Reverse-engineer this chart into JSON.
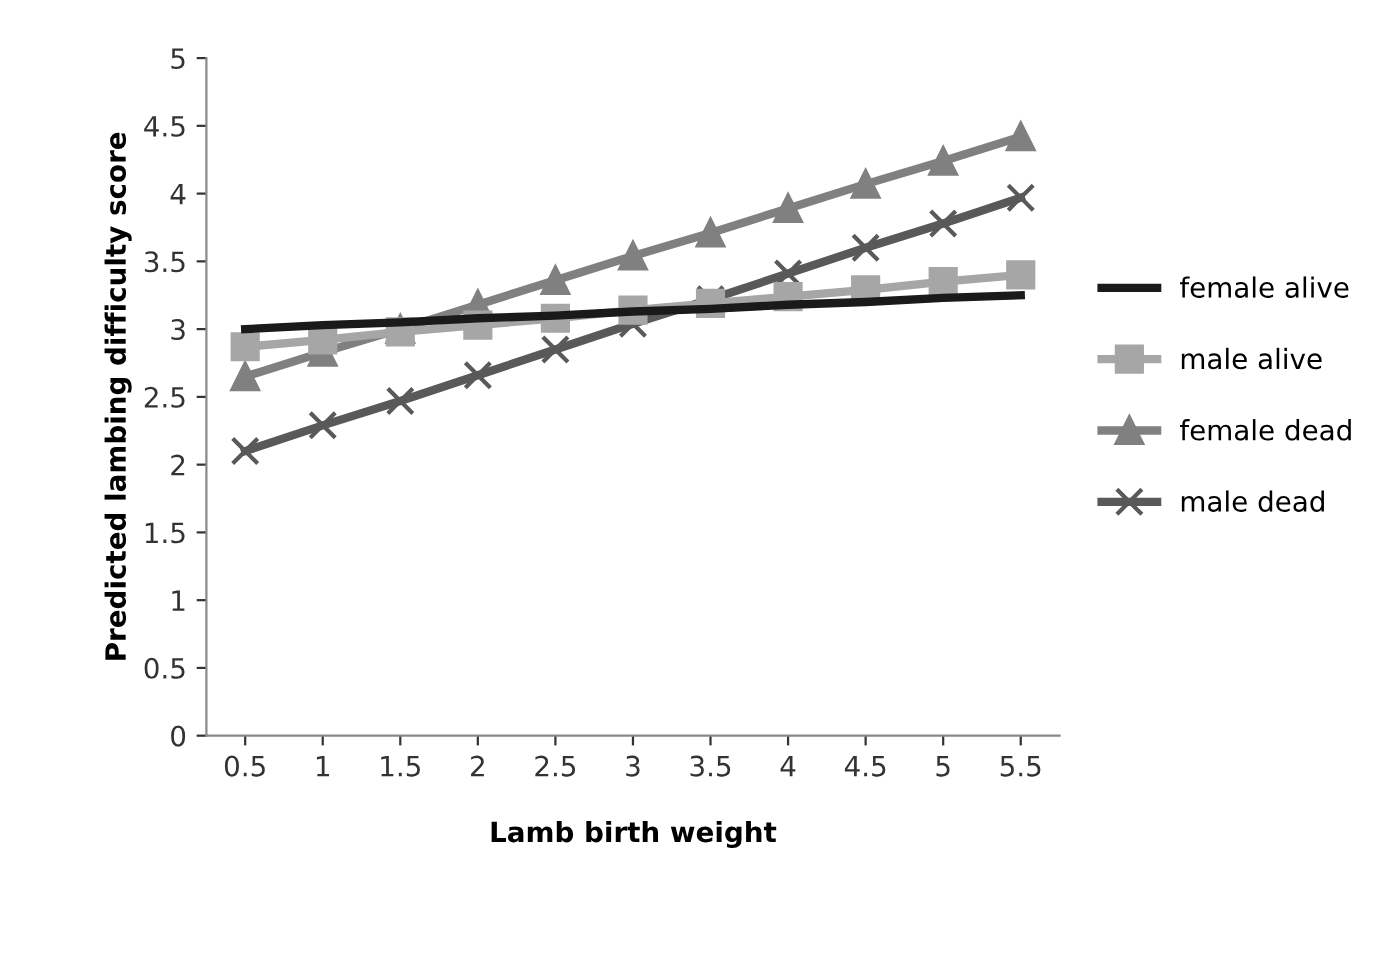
{
  "chart_data": {
    "type": "line",
    "xlabel": "Lamb birth weight",
    "ylabel": "Predicted lambing difficulty score",
    "categories": [
      "0.5",
      "1",
      "1.5",
      "2",
      "2.5",
      "3",
      "3.5",
      "4",
      "4.5",
      "5",
      "5.5"
    ],
    "series": [
      {
        "name": "female alive",
        "color": "#1a1a1a",
        "marker": "none",
        "values": [
          3.0,
          3.03,
          3.05,
          3.08,
          3.1,
          3.13,
          3.15,
          3.18,
          3.2,
          3.23,
          3.25
        ]
      },
      {
        "name": "male alive",
        "color": "#a6a6a6",
        "marker": "square",
        "values": [
          2.87,
          2.92,
          2.98,
          3.03,
          3.08,
          3.14,
          3.19,
          3.24,
          3.29,
          3.35,
          3.4
        ]
      },
      {
        "name": "female dead",
        "color": "#808080",
        "marker": "triangle",
        "values": [
          2.65,
          2.83,
          3.0,
          3.18,
          3.36,
          3.54,
          3.71,
          3.89,
          4.07,
          4.24,
          4.42
        ]
      },
      {
        "name": "male dead",
        "color": "#595959",
        "marker": "cross",
        "values": [
          2.1,
          2.29,
          2.47,
          2.66,
          2.85,
          3.04,
          3.22,
          3.41,
          3.6,
          3.78,
          3.97
        ]
      }
    ],
    "ylim": [
      0,
      5
    ],
    "yticks": [
      0,
      0.5,
      1,
      1.5,
      2,
      2.5,
      3,
      3.5,
      4,
      4.5,
      5
    ],
    "grid": false,
    "legend": "right",
    "line_style": "solid"
  }
}
